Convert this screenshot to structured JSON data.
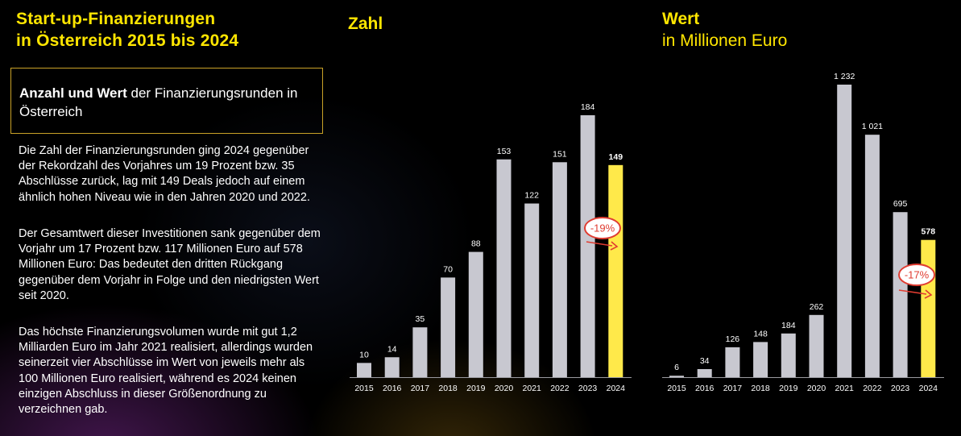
{
  "page_title": "Start-up-Finanzierungen\nin Österreich 2015 bis 2024",
  "box": {
    "bold": "Anzahl und Wert",
    "text": " der Finanzierungsrunden in Österreich"
  },
  "paragraphs": [
    "Die Zahl der Finanzierungsrunden ging 2024 gegenüber der Rekordzahl des Vorjahres um 19 Prozent bzw. 35 Abschlüsse zurück, lag mit 149 Deals jedoch auf einem ähnlich hohen Niveau wie in den Jahren 2020 und 2022.",
    "Der Gesamtwert dieser Investitionen sank gegenüber dem Vorjahr um 17 Prozent bzw. 117 Millionen Euro auf 578 Millionen Euro: Das bedeutet den dritten Rückgang gegenüber dem Vorjahr in Folge und den niedrigsten Wert seit 2020.",
    "Das höchste Finanzierungsvolumen wurde mit gut 1,2 Milliarden Euro im Jahr 2021 realisiert, allerdings wurden seinerzeit vier Abschlüsse im Wert von jeweils mehr als 100 Millionen Euro realisiert, während es 2024 keinen einzigen Abschluss in dieser Größenordnung zu verzeichnen gab."
  ],
  "colors": {
    "accent": "#ffe600",
    "bar": "#c8c8d0",
    "highlight_bar": "#ffe94a",
    "annotation": "#e03c31",
    "box_border": "#c9a227"
  },
  "chart_data": [
    {
      "type": "bar",
      "title": "Zahl",
      "categories": [
        "2015",
        "2016",
        "2017",
        "2018",
        "2019",
        "2020",
        "2021",
        "2022",
        "2023",
        "2024"
      ],
      "values": [
        10,
        14,
        35,
        70,
        88,
        153,
        122,
        151,
        184,
        149
      ],
      "value_labels": [
        "10",
        "14",
        "35",
        "70",
        "88",
        "153",
        "122",
        "151",
        "184",
        "149"
      ],
      "highlight_index": 9,
      "annotation": "-19%",
      "ylim": [
        0,
        184
      ],
      "grid": false,
      "legend": "none"
    },
    {
      "type": "bar",
      "title": "Wert",
      "subtitle": "in Millionen Euro",
      "categories": [
        "2015",
        "2016",
        "2017",
        "2018",
        "2019",
        "2020",
        "2021",
        "2022",
        "2023",
        "2024"
      ],
      "values": [
        6,
        34,
        126,
        148,
        184,
        262,
        1232,
        1021,
        695,
        578
      ],
      "value_labels": [
        "6",
        "34",
        "126",
        "148",
        "184",
        "262",
        "1 232",
        "1 021",
        "695",
        "578"
      ],
      "highlight_index": 9,
      "annotation": "-17%",
      "ylim": [
        0,
        1232
      ],
      "grid": false,
      "legend": "none"
    }
  ]
}
